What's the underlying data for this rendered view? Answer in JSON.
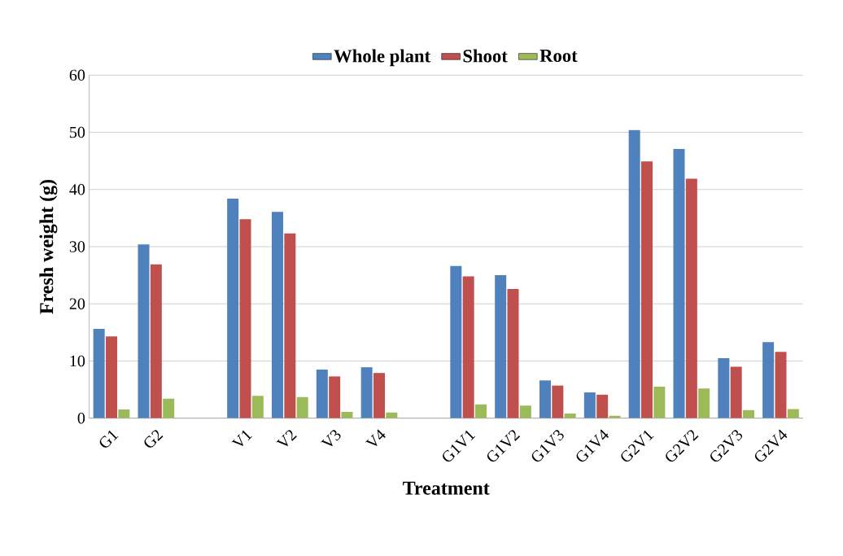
{
  "chart_data": {
    "type": "bar",
    "xlabel": "Treatment",
    "ylabel": "Fresh weight (g)",
    "categories": [
      "G1",
      "G2",
      null,
      "V1",
      "V2",
      "V3",
      "V4",
      null,
      "G1V1",
      "G1V2",
      "G1V3",
      "G1V4",
      "G2V1",
      "G2V2",
      "G2V3",
      "G2V4"
    ],
    "series": [
      {
        "name": "Whole plant",
        "color": "#4f81bd",
        "values": [
          15.6,
          30.4,
          null,
          38.4,
          36.1,
          8.5,
          8.9,
          null,
          26.6,
          25.0,
          6.6,
          4.5,
          50.4,
          47.1,
          10.5,
          13.3
        ]
      },
      {
        "name": "Shoot",
        "color": "#c0504d",
        "values": [
          14.3,
          26.9,
          null,
          34.8,
          32.3,
          7.3,
          7.9,
          null,
          24.8,
          22.6,
          5.7,
          4.1,
          44.9,
          41.9,
          9.0,
          11.6
        ]
      },
      {
        "name": "Root",
        "color": "#9bbb59",
        "values": [
          1.5,
          3.4,
          null,
          3.9,
          3.7,
          1.1,
          1.0,
          null,
          2.4,
          2.2,
          0.8,
          0.4,
          5.5,
          5.2,
          1.4,
          1.6
        ]
      }
    ],
    "ylim": [
      0,
      60
    ],
    "yticks": [
      0,
      10,
      20,
      30,
      40,
      50,
      60
    ],
    "grid": "y",
    "legend": "top"
  }
}
